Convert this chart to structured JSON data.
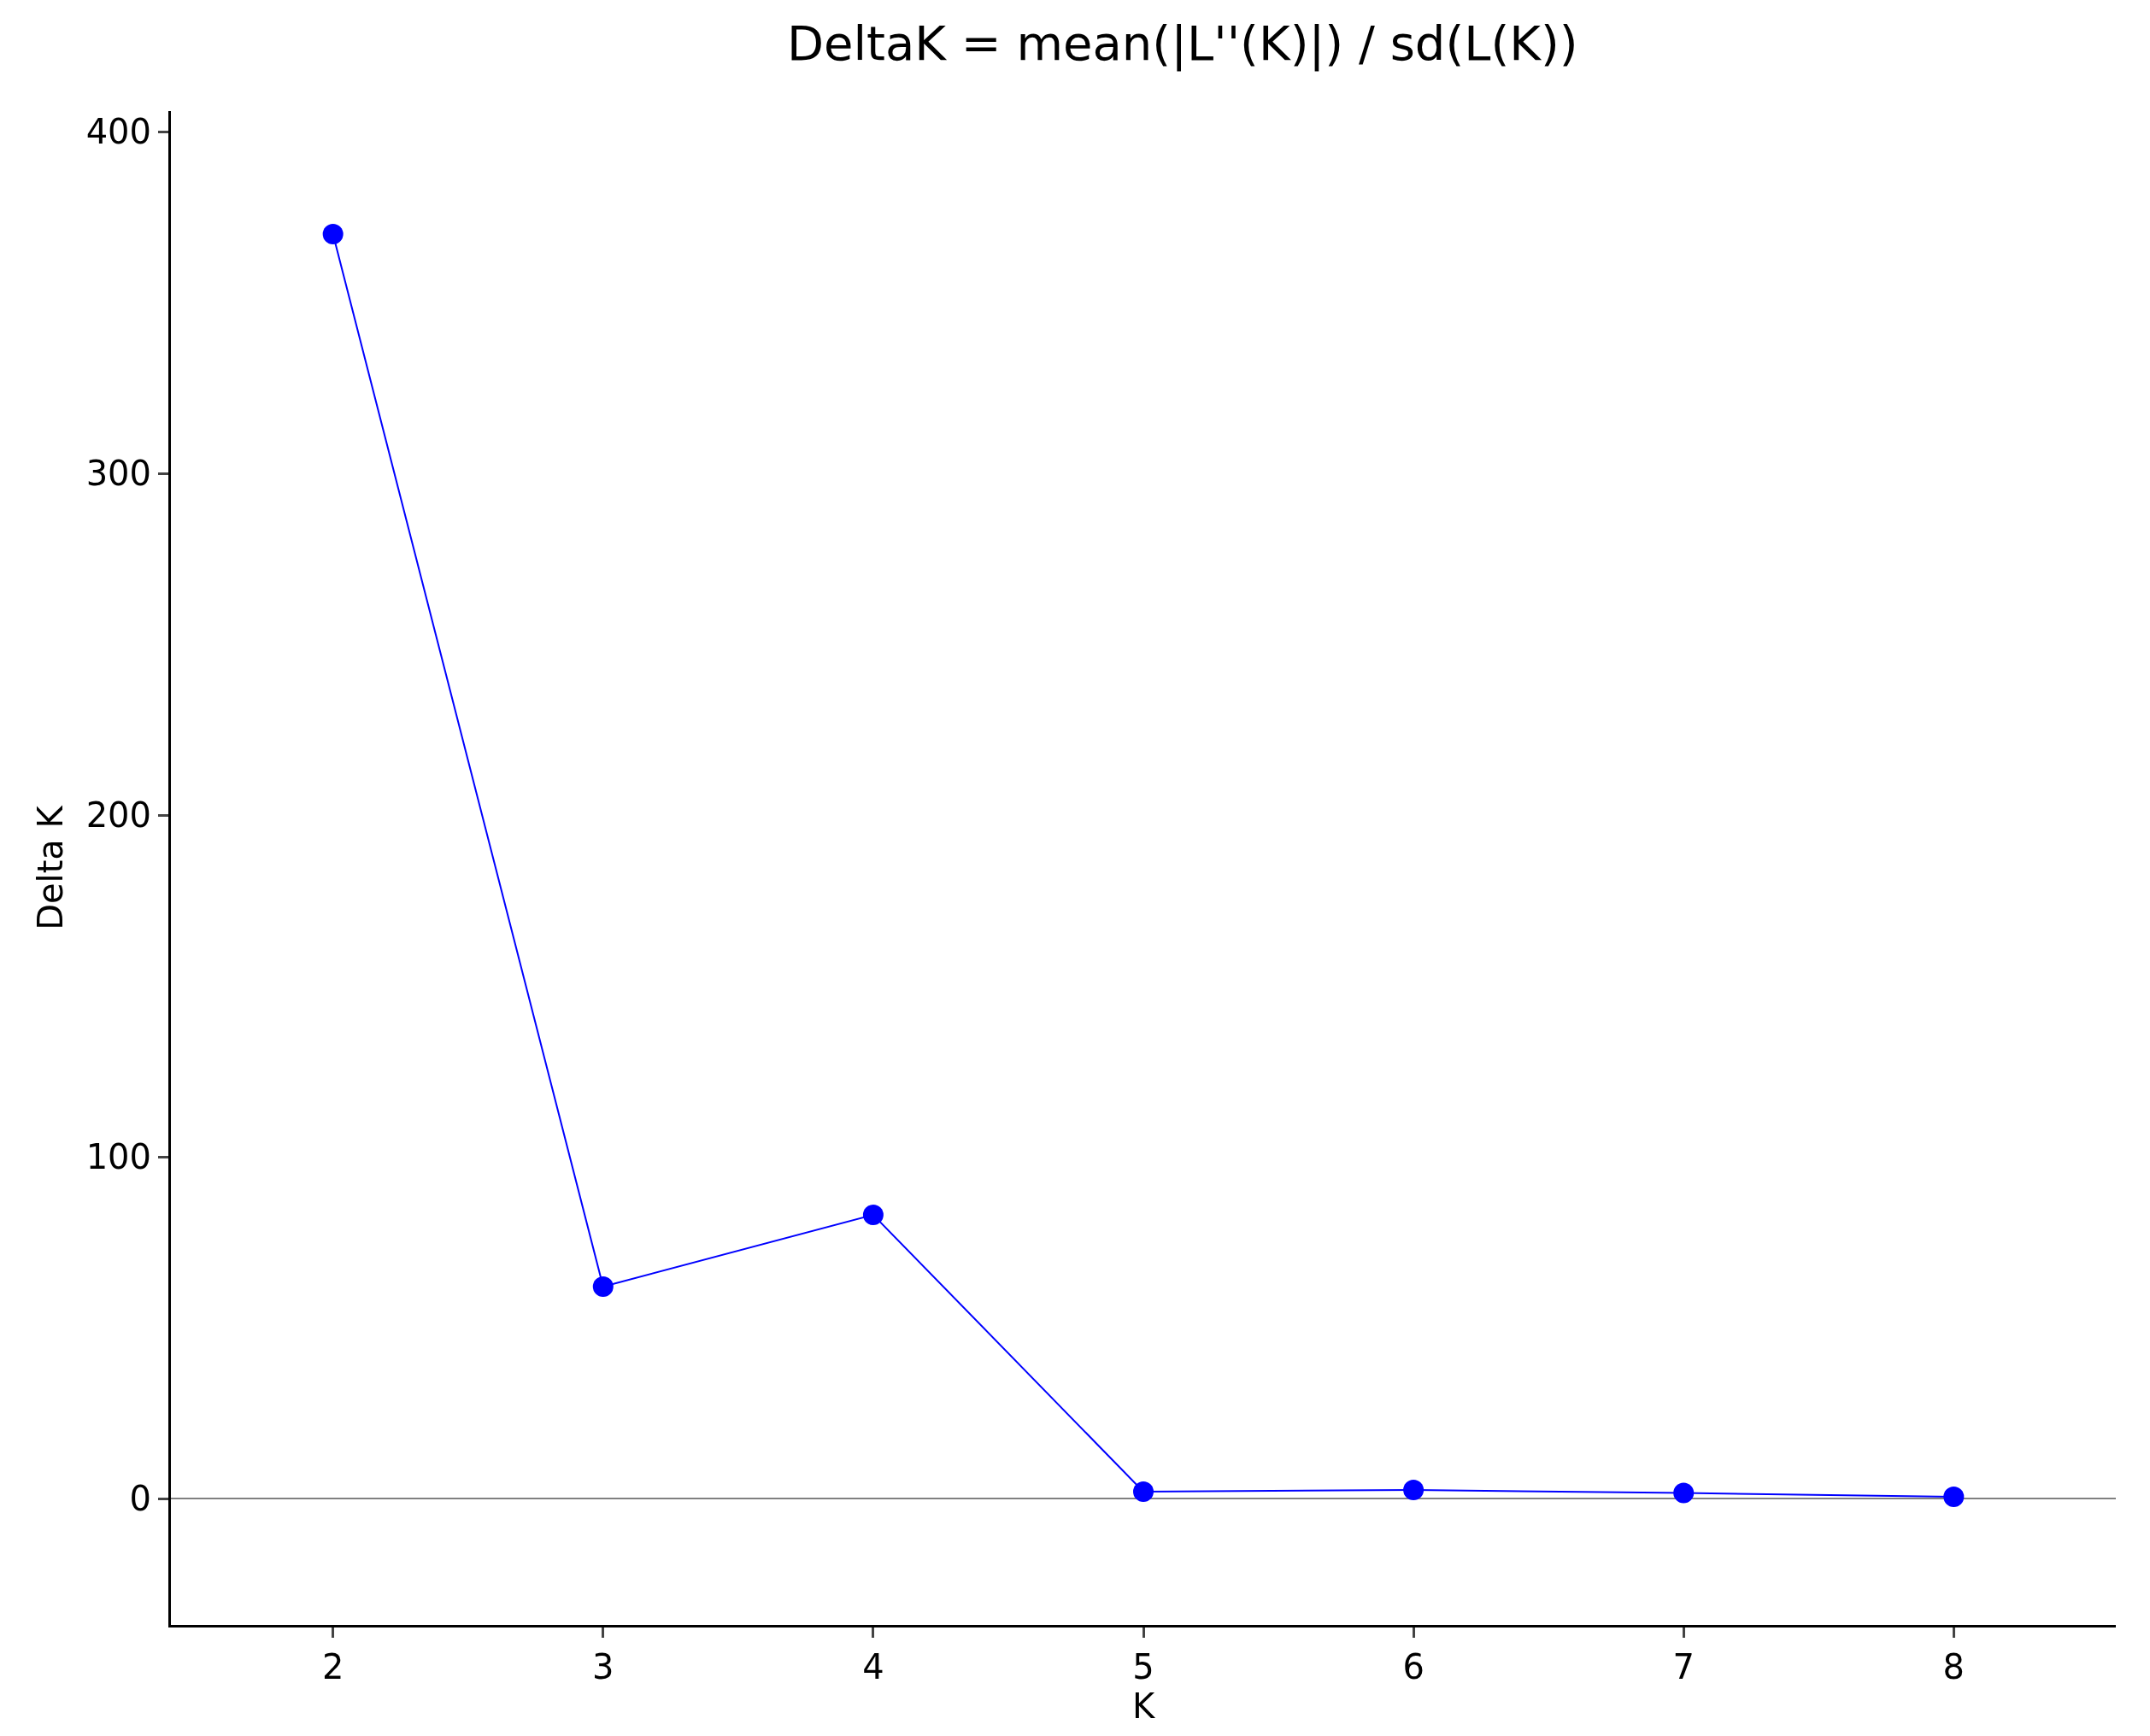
{
  "chart_data": {
    "type": "line",
    "title": "DeltaK = mean(|L''(K)|) / sd(L(K))",
    "xlabel": "K",
    "ylabel": "Delta K",
    "x": [
      2,
      3,
      4,
      5,
      6,
      7,
      8
    ],
    "series": [
      {
        "color": "#0000ff",
        "values": [
          370,
          62,
          83,
          2,
          2.5,
          1.6,
          0.5
        ]
      }
    ],
    "xlim": [
      1.4,
      8.6
    ],
    "xticks": [
      2,
      3,
      4,
      5,
      6,
      7,
      8
    ],
    "ylim": [
      -37,
      406
    ],
    "yticks": [
      0,
      100,
      200,
      300,
      400
    ],
    "ref_lines": [
      {
        "axis": "y",
        "value": 0,
        "color": "#808080"
      }
    ],
    "marker": "circle",
    "line_style": "solid",
    "grid": false
  }
}
